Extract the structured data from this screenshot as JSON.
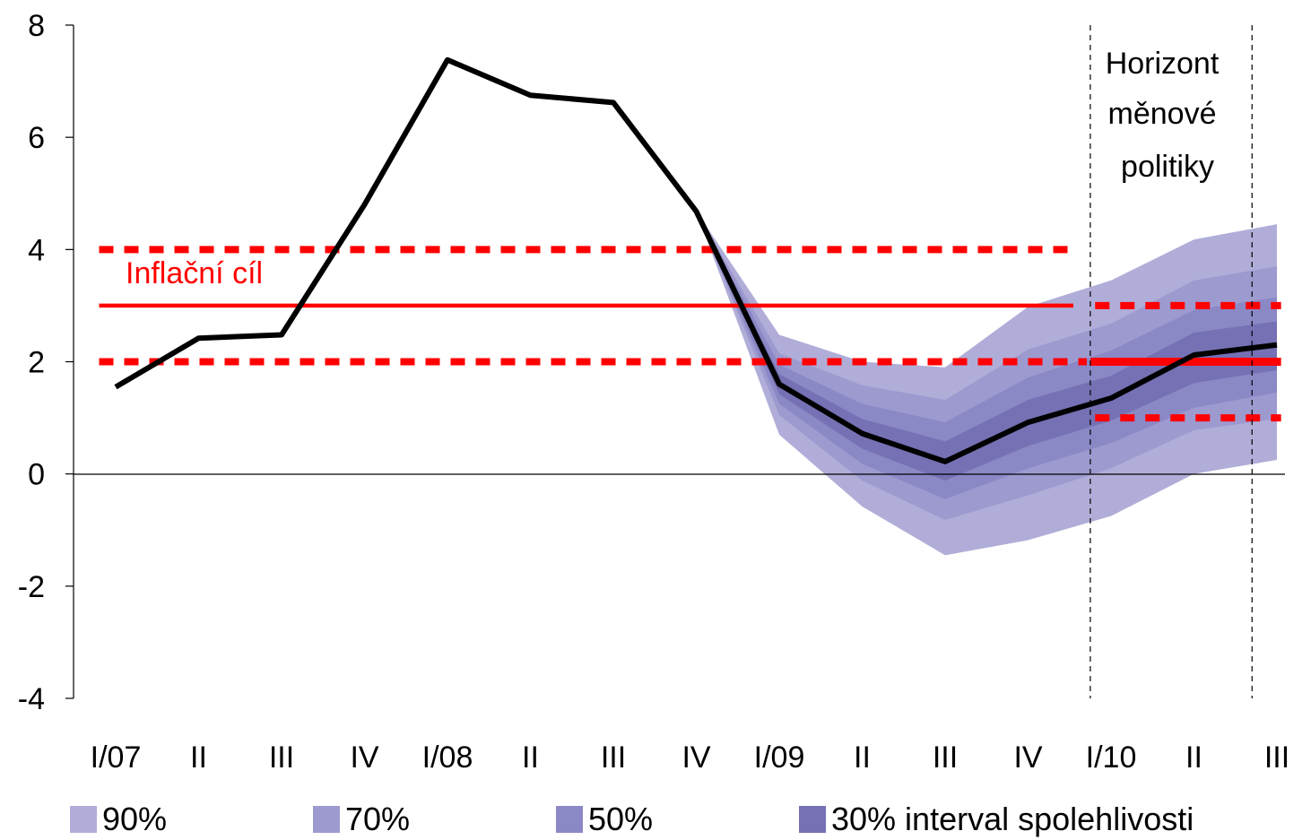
{
  "chart_data": {
    "type": "line",
    "categories": [
      "I/07",
      "II",
      "III",
      "IV",
      "I/08",
      "II",
      "III",
      "IV",
      "I/09",
      "II",
      "III",
      "IV",
      "I/10",
      "II",
      "III"
    ],
    "ylim": [
      -4,
      8
    ],
    "yticks": [
      -4,
      -2,
      0,
      2,
      4,
      6,
      8
    ],
    "ytick_labels": [
      "-4",
      "-2",
      "0",
      "2",
      "4",
      "6",
      "8"
    ],
    "grid": false,
    "series": [
      {
        "values": [
          1.55,
          2.42,
          2.48,
          4.8,
          7.38,
          6.75,
          6.62,
          4.68,
          1.6,
          0.72,
          0.22,
          0.92,
          1.35,
          2.12,
          2.3
        ]
      }
    ],
    "fan": {
      "start_index": 7,
      "bands": [
        {
          "label": "90%",
          "color": "#b0aed8",
          "lower": [
            4.68,
            0.7,
            -0.58,
            -1.45,
            -1.18,
            -0.75,
            0.0,
            0.25
          ],
          "upper": [
            4.68,
            2.48,
            2.0,
            1.9,
            2.98,
            3.45,
            4.18,
            4.45
          ]
        },
        {
          "label": "70%",
          "color": "#9d9ad0",
          "lower": [
            4.68,
            1.05,
            -0.12,
            -0.82,
            -0.38,
            0.1,
            0.78,
            0.98
          ],
          "upper": [
            4.68,
            2.15,
            1.58,
            1.32,
            2.22,
            2.68,
            3.45,
            3.7
          ]
        },
        {
          "label": "50%",
          "color": "#8b88c6",
          "lower": [
            4.68,
            1.25,
            0.18,
            -0.45,
            0.1,
            0.55,
            1.18,
            1.45
          ],
          "upper": [
            4.68,
            1.95,
            1.25,
            0.92,
            1.72,
            2.2,
            2.92,
            3.15
          ]
        },
        {
          "label": "30% interval spolehlivosti",
          "color": "#7571b4",
          "lower": [
            4.68,
            1.42,
            0.45,
            -0.12,
            0.5,
            0.95,
            1.62,
            1.85
          ],
          "upper": [
            4.68,
            1.78,
            0.98,
            0.58,
            1.32,
            1.75,
            2.52,
            2.72
          ]
        }
      ]
    },
    "target": {
      "label": "Inflační cíl",
      "color": "#ff0000",
      "phase1": {
        "from_index": -0.2,
        "to_index": 11.6,
        "center": 3,
        "lower": 2,
        "upper": 4
      },
      "phase2": {
        "from_index": 11.7,
        "to_index": 14.05,
        "center": 2,
        "lower": 1,
        "upper": 3
      }
    },
    "horizon": {
      "label_lines": [
        "Horizont",
        "měnové",
        "politiky"
      ],
      "boundaries": [
        11.75,
        13.7
      ]
    }
  },
  "legend": [
    {
      "label": "90%",
      "color": "#b0aed8"
    },
    {
      "label": "70%",
      "color": "#9d9ad0"
    },
    {
      "label": "50%",
      "color": "#8b88c6"
    },
    {
      "label": "30% interval spolehlivosti",
      "color": "#7571b4"
    }
  ]
}
